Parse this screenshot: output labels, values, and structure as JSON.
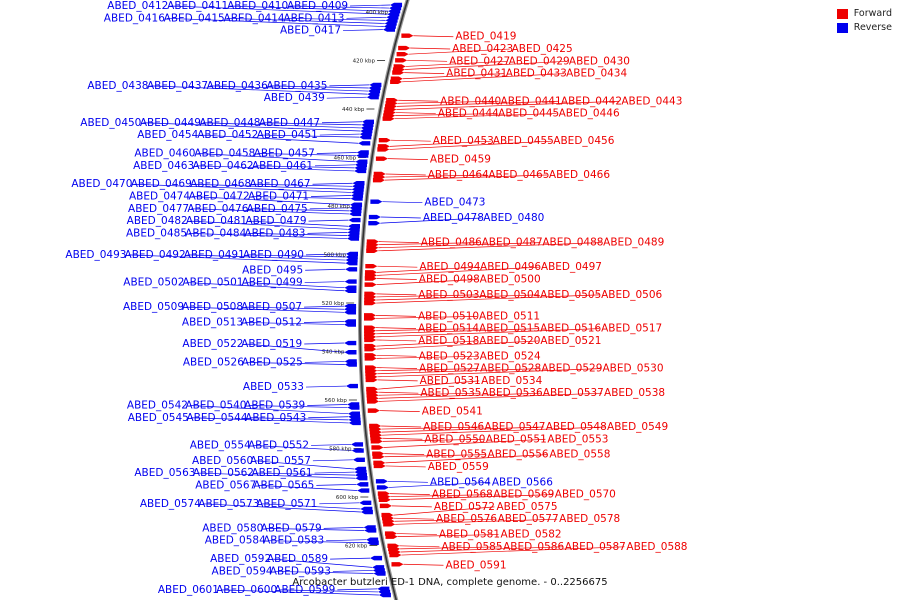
{
  "caption": "Arcobacter butzleri ED-1 DNA, complete genome. - 0..2256675",
  "legend": {
    "forward_label": "Forward",
    "forward_color": "#ee0000",
    "reverse_label": "Reverse",
    "reverse_color": "#0000ee"
  },
  "ticks": [
    "400 kbp",
    "420 kbp",
    "440 kbp",
    "460 kbp",
    "480 kbp",
    "500 kbp",
    "520 kbp",
    "540 kbp",
    "560 kbp",
    "580 kbp",
    "600 kbp",
    "620 kbp"
  ],
  "forward_genes": [
    "ABED_0419",
    "ABED_0423",
    "ABED_0425",
    "ABED_0427",
    "ABED_0429",
    "ABED_0430",
    "ABED_0431",
    "ABED_0433",
    "ABED_0434",
    "ABED_0440",
    "ABED_0441",
    "ABED_0442",
    "ABED_0443",
    "ABED_0444",
    "ABED_0445",
    "ABED_0446",
    "ABED_0453",
    "ABED_0455",
    "ABED_0456",
    "ABED_0459",
    "ABED_0464",
    "ABED_0465",
    "ABED_0466",
    "ABED_0486",
    "ABED_0487",
    "ABED_0488",
    "ABED_0489",
    "ABED_0494",
    "ABED_0496",
    "ABED_0497",
    "ABED_0498",
    "ABED_0500",
    "ABED_0503",
    "ABED_0504",
    "ABED_0505",
    "ABED_0506",
    "ABED_0510",
    "ABED_0511",
    "ABED_0514",
    "ABED_0515",
    "ABED_0516",
    "ABED_0517",
    "ABED_0518",
    "ABED_0520",
    "ABED_0521",
    "ABED_0523",
    "ABED_0524",
    "ABED_0527",
    "ABED_0528",
    "ABED_0529",
    "ABED_0530",
    "ABED_0531",
    "ABED_0534",
    "ABED_0535",
    "ABED_0536",
    "ABED_0537",
    "ABED_0538",
    "ABED_0541",
    "ABED_0546",
    "ABED_0547",
    "ABED_0548",
    "ABED_0549",
    "ABED_0550",
    "ABED_0551",
    "ABED_0553",
    "ABED_0555",
    "ABED_0556",
    "ABED_0558",
    "ABED_0559",
    "ABED_0568",
    "ABED_0569",
    "ABED_0570",
    "ABED_0572",
    "ABED_0575",
    "ABED_0576",
    "ABED_0577",
    "ABED_0578",
    "ABED_0581",
    "ABED_0582",
    "ABED_0585",
    "ABED_0586",
    "ABED_0587",
    "ABED_0588",
    "ABED_0591"
  ],
  "forward_blue_genes": [
    "ABED_0473",
    "ABED_0478",
    "ABED_0480",
    "ABED_0564",
    "ABED_0566"
  ],
  "reverse_genes": [
    "ABED_0409",
    "ABED_0410",
    "ABED_0411",
    "ABED_0412",
    "ABED_0413",
    "ABED_0414",
    "ABED_0415",
    "ABED_0416",
    "ABED_0417",
    "ABED_0435",
    "ABED_0436",
    "ABED_0437",
    "ABED_0438",
    "ABED_0439",
    "ABED_0447",
    "ABED_0448",
    "ABED_0449",
    "ABED_0450",
    "ABED_0451",
    "ABED_0452",
    "ABED_0454",
    "ABED_0457",
    "ABED_0458",
    "ABED_0460",
    "ABED_0461",
    "ABED_0462",
    "ABED_0463",
    "ABED_0467",
    "ABED_0468",
    "ABED_0469",
    "ABED_0470",
    "ABED_0471",
    "ABED_0472",
    "ABED_0474",
    "ABED_0475",
    "ABED_0476",
    "ABED_0477",
    "ABED_0479",
    "ABED_0481",
    "ABED_0482",
    "ABED_0483",
    "ABED_0484",
    "ABED_0485",
    "ABED_0490",
    "ABED_0491",
    "ABED_0492",
    "ABED_0493",
    "ABED_0495",
    "ABED_0499",
    "ABED_0501",
    "ABED_0502",
    "ABED_0507",
    "ABED_0508",
    "ABED_0509",
    "ABED_0512",
    "ABED_0513",
    "ABED_0519",
    "ABED_0522",
    "ABED_0525",
    "ABED_0526",
    "ABED_0533",
    "ABED_0539",
    "ABED_0540",
    "ABED_0542",
    "ABED_0543",
    "ABED_0544",
    "ABED_0545",
    "ABED_0552",
    "ABED_0554",
    "ABED_0557",
    "ABED_0560",
    "ABED_0561",
    "ABED_0562",
    "ABED_0563",
    "ABED_0565",
    "ABED_0567",
    "ABED_0571",
    "ABED_0573",
    "ABED_0574",
    "ABED_0579",
    "ABED_0580",
    "ABED_0583",
    "ABED_0584",
    "ABED_0589",
    "ABED_0592",
    "ABED_0593",
    "ABED_0594",
    "ABED_0599",
    "ABED_0600",
    "ABED_0601"
  ]
}
